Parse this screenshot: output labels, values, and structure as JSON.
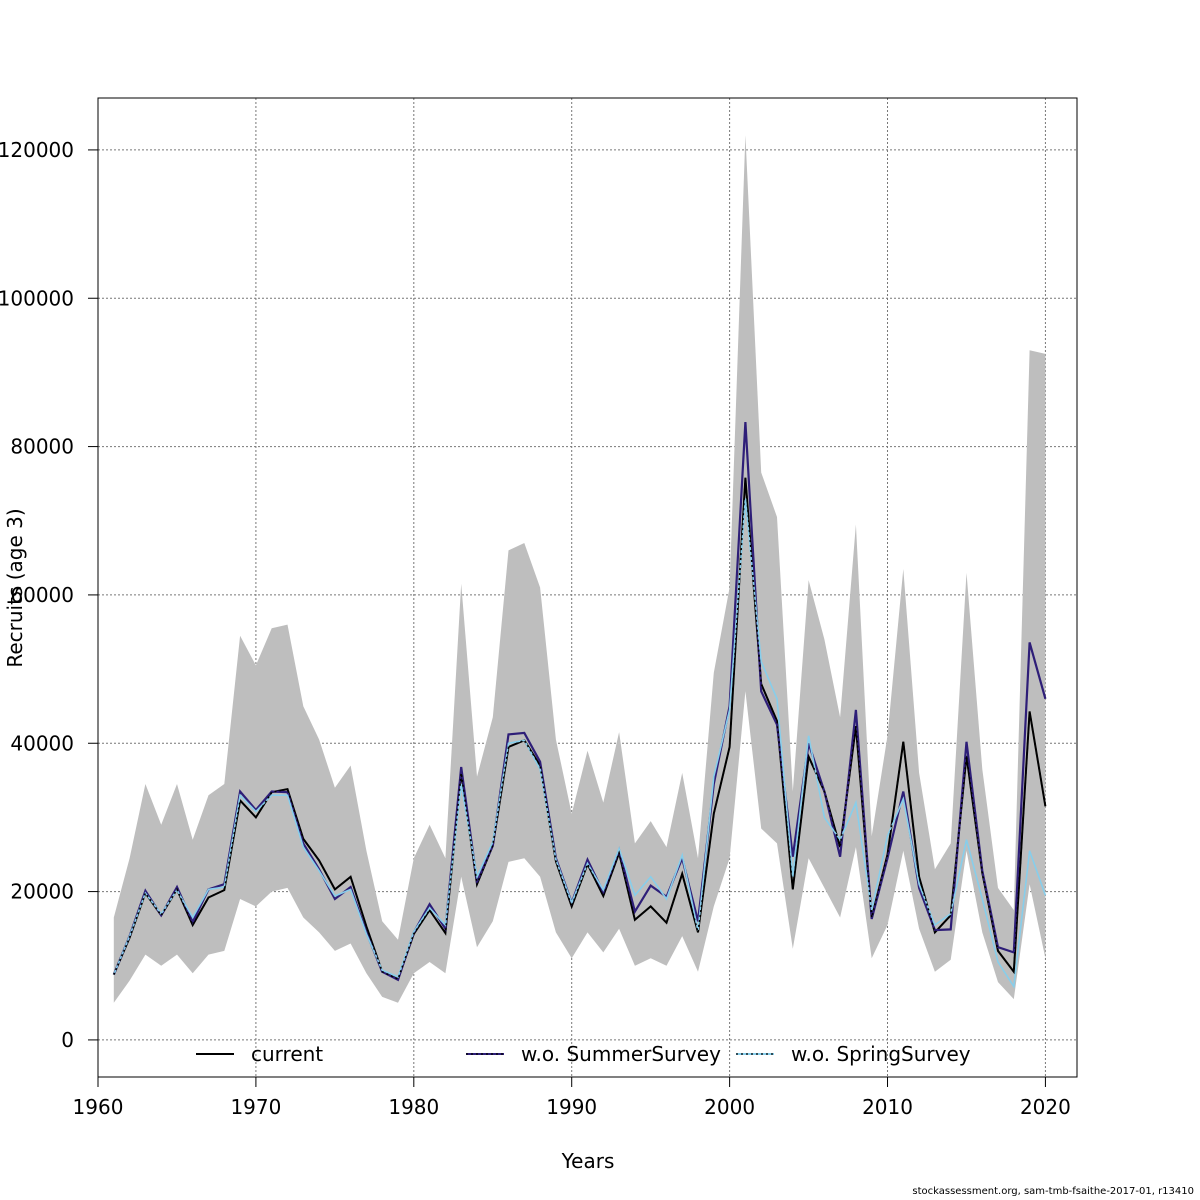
{
  "chart_data": {
    "type": "line",
    "title": "",
    "xlabel": "Years",
    "ylabel": "Recruits (age 3)",
    "xlim": [
      1960,
      2022
    ],
    "ylim": [
      -5000,
      127000
    ],
    "x_ticks": [
      1960,
      1970,
      1980,
      1990,
      2000,
      2010,
      2020
    ],
    "y_ticks": [
      0,
      20000,
      40000,
      60000,
      80000,
      100000,
      120000
    ],
    "x_tick_labels": [
      "1960",
      "1970",
      "1980",
      "1990",
      "2000",
      "2010",
      "2020"
    ],
    "y_tick_labels": [
      "0",
      "20000",
      "40000",
      "60000",
      "80000",
      "100000",
      "120000"
    ],
    "grid": true,
    "legend_position": "bottom",
    "colors": {
      "band": "#bebebe",
      "current": "#000000",
      "summer": "#2e1e78",
      "spring": "#87ceeb"
    },
    "x": [
      1961,
      1962,
      1963,
      1964,
      1965,
      1966,
      1967,
      1968,
      1969,
      1970,
      1971,
      1972,
      1973,
      1974,
      1975,
      1976,
      1977,
      1978,
      1979,
      1980,
      1981,
      1982,
      1983,
      1984,
      1985,
      1986,
      1987,
      1988,
      1989,
      1990,
      1991,
      1992,
      1993,
      1994,
      1995,
      1996,
      1997,
      1998,
      1999,
      2000,
      2001,
      2002,
      2003,
      2004,
      2005,
      2006,
      2007,
      2008,
      2009,
      2010,
      2011,
      2012,
      2013,
      2014,
      2015,
      2016,
      2017,
      2018,
      2019,
      2020
    ],
    "band_upper": [
      16500,
      24500,
      34500,
      29000,
      34500,
      27000,
      33000,
      34500,
      54500,
      50500,
      55500,
      56000,
      45000,
      40500,
      34000,
      37000,
      25500,
      16000,
      13500,
      24500,
      29000,
      24500,
      61500,
      35500,
      43500,
      66000,
      67000,
      61000,
      40500,
      30500,
      39000,
      32000,
      41500,
      26500,
      29500,
      26000,
      36000,
      24500,
      49500,
      61000,
      122000,
      76500,
      70500,
      33500,
      62000,
      54000,
      43500,
      69500,
      27500,
      41000,
      63500,
      36000,
      23000,
      26500,
      63000,
      36500,
      20500,
      17500,
      93000,
      92500
    ],
    "band_lower": [
      5000,
      8000,
      11500,
      10000,
      11500,
      9000,
      11500,
      12000,
      19000,
      18000,
      20000,
      20500,
      16500,
      14500,
      12000,
      13000,
      9000,
      5800,
      5000,
      9000,
      10500,
      9000,
      22000,
      12500,
      16000,
      24000,
      24500,
      22000,
      14500,
      11000,
      14500,
      11800,
      15000,
      10000,
      11000,
      10000,
      14000,
      9200,
      18000,
      24500,
      47000,
      28500,
      26500,
      12300,
      24500,
      20500,
      16500,
      26000,
      11000,
      15500,
      25500,
      15000,
      9200,
      10800,
      25500,
      14500,
      7800,
      5500,
      21000,
      11000
    ],
    "series": [
      {
        "name": "current",
        "values": [
          8800,
          13800,
          19800,
          16800,
          20300,
          15500,
          19200,
          20200,
          32300,
          30000,
          33400,
          33800,
          27100,
          24200,
          20300,
          22000,
          15300,
          9200,
          8200,
          14300,
          17500,
          14400,
          36000,
          21000,
          26200,
          39500,
          40400,
          37000,
          24100,
          18000,
          23700,
          19400,
          25200,
          16200,
          18000,
          15800,
          22400,
          14500,
          30500,
          39500,
          75800,
          48000,
          43000,
          20300,
          38200,
          33500,
          26000,
          42300,
          16500,
          25000,
          40200,
          22000,
          14500,
          16800,
          38300,
          22500,
          12000,
          9200,
          44300,
          31500
        ]
      },
      {
        "name": "w.o. SummerSurvey",
        "values": [
          8800,
          14000,
          20100,
          16800,
          20600,
          15900,
          20300,
          21000,
          33500,
          31000,
          33500,
          33400,
          26500,
          23000,
          19000,
          20600,
          14500,
          9200,
          8100,
          14500,
          18300,
          15000,
          36800,
          21300,
          26200,
          41200,
          41400,
          37500,
          24500,
          18500,
          24300,
          19900,
          25600,
          17300,
          20800,
          19300,
          24500,
          16000,
          34500,
          45000,
          83300,
          47000,
          42500,
          24700,
          40000,
          33500,
          24700,
          44500,
          16300,
          24500,
          33500,
          20500,
          14800,
          14900,
          40200,
          22800,
          12500,
          11800,
          53600,
          46000
        ]
      },
      {
        "name": "w.o. SpringSurvey",
        "values": [
          8800,
          14000,
          19800,
          17000,
          20200,
          16500,
          20300,
          20600,
          33000,
          30800,
          33000,
          33000,
          26000,
          22800,
          19400,
          20300,
          14300,
          9400,
          8500,
          14600,
          17800,
          15500,
          34500,
          22000,
          26700,
          40000,
          40400,
          36500,
          24300,
          18500,
          23800,
          20200,
          25800,
          19500,
          22000,
          19000,
          24900,
          14700,
          35500,
          44500,
          73000,
          51000,
          46000,
          22000,
          41000,
          30000,
          27000,
          32000,
          17500,
          27500,
          32500,
          21000,
          15500,
          17000,
          27000,
          19000,
          10500,
          7200,
          25500,
          19500
        ]
      }
    ]
  },
  "footer": {
    "credit": "stockassessment.org, sam-tmb-fsaithe-2017-01, r13410"
  }
}
